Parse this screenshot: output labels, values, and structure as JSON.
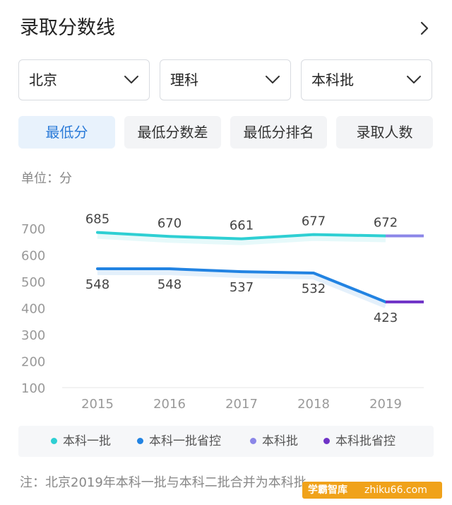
{
  "header": {
    "title": "录取分数线"
  },
  "filters": [
    {
      "label": "北京"
    },
    {
      "label": "理科"
    },
    {
      "label": "本科批"
    }
  ],
  "tabs": [
    {
      "label": "最低分",
      "active": true
    },
    {
      "label": "最低分数差",
      "active": false
    },
    {
      "label": "最低分排名",
      "active": false
    },
    {
      "label": "录取人数",
      "active": false
    }
  ],
  "unit_label": "单位：分",
  "chart_data": {
    "type": "line",
    "categories": [
      "2015",
      "2016",
      "2017",
      "2018",
      "2019"
    ],
    "y_ticks": [
      "700",
      "600",
      "500",
      "400",
      "300",
      "200",
      "100"
    ],
    "ylim": [
      100,
      700
    ],
    "grid": false,
    "legend_position": "bottom",
    "series": [
      {
        "name": "本科一批",
        "color": "#2ecfd3",
        "x": [
          "2015",
          "2016",
          "2017",
          "2018",
          "2019"
        ],
        "values": [
          685,
          670,
          661,
          677,
          672
        ]
      },
      {
        "name": "本科一批省控",
        "color": "#2283e2",
        "x": [
          "2015",
          "2016",
          "2017",
          "2018",
          "2019"
        ],
        "values": [
          548,
          548,
          537,
          532,
          423
        ]
      },
      {
        "name": "本科批",
        "color": "#8b86e8",
        "x": [
          "2019"
        ],
        "values": [
          672
        ]
      },
      {
        "name": "本科批省控",
        "color": "#6f33c7",
        "x": [
          "2019"
        ],
        "values": [
          423
        ]
      }
    ],
    "data_labels": [
      {
        "series": "本科一批",
        "values": [
          "685",
          "670",
          "661",
          "677",
          "672"
        ]
      },
      {
        "series": "本科一批省控",
        "values": [
          "548",
          "548",
          "537",
          "532",
          "423"
        ]
      }
    ]
  },
  "note": "注：北京2019年本科一批与本科二批合并为本科批",
  "watermark": {
    "left": "学霸智库",
    "right": "zhiku66.com"
  }
}
